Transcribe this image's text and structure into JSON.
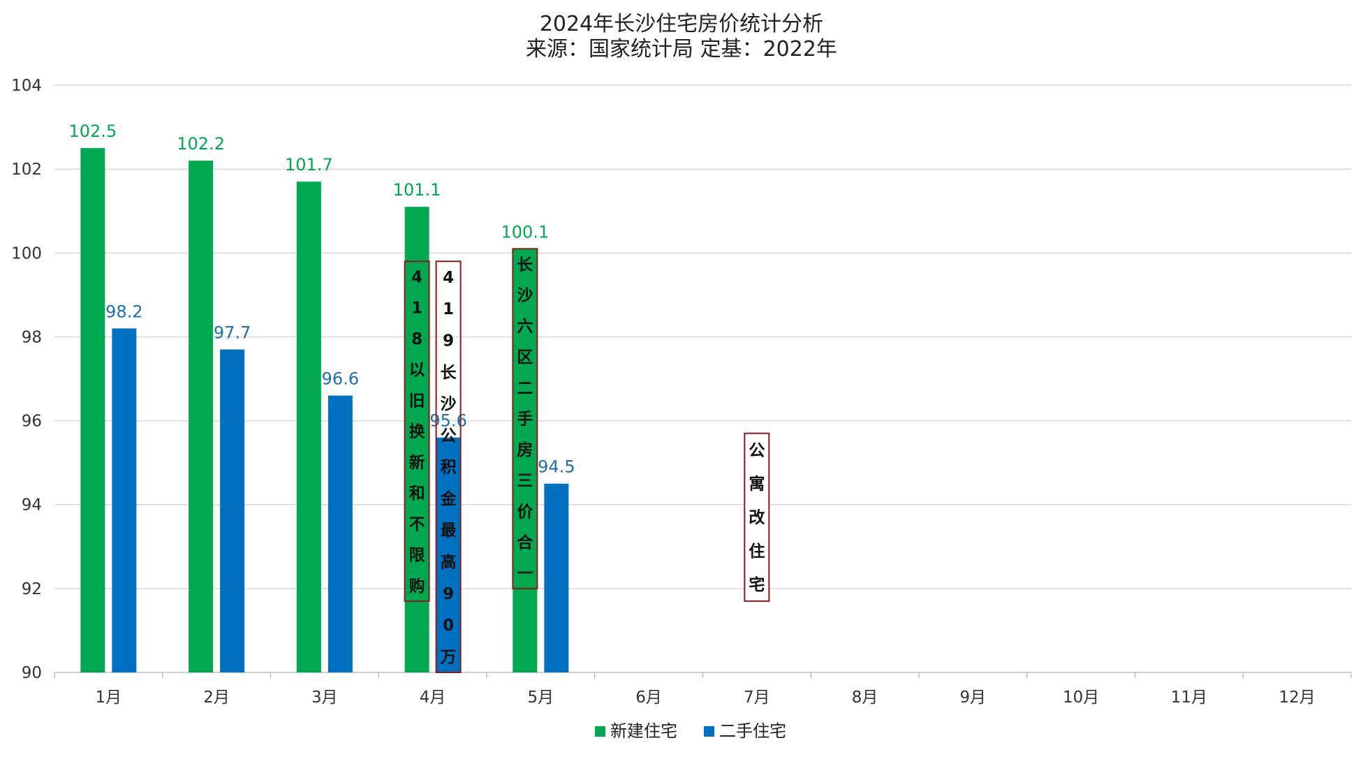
{
  "chart_data": {
    "type": "bar",
    "title": "2024年长沙住宅房价统计分析",
    "subtitle": "来源：国家统计局 定基：2022年",
    "categories": [
      "1月",
      "2月",
      "3月",
      "4月",
      "5月",
      "6月",
      "7月",
      "8月",
      "9月",
      "10月",
      "11月",
      "12月"
    ],
    "series": [
      {
        "name": "新建住宅",
        "color": "#00a94f",
        "label_color": "#00a94f",
        "values": [
          102.5,
          102.2,
          101.7,
          101.1,
          100.1,
          null,
          null,
          null,
          null,
          null,
          null,
          null
        ]
      },
      {
        "name": "二手住宅",
        "color": "#0070c0",
        "label_color": "#1f6fb0",
        "values": [
          98.2,
          97.7,
          96.6,
          95.6,
          94.5,
          null,
          null,
          null,
          null,
          null,
          null,
          null
        ]
      }
    ],
    "ylim": [
      90,
      104
    ],
    "yticks": [
      90,
      92,
      94,
      96,
      98,
      100,
      102,
      104
    ],
    "grid": true,
    "legend_position": "bottom-center",
    "annotations": [
      {
        "text": "418以旧换新和不限购",
        "category": "4月",
        "slot": 0,
        "top_value": 99.8,
        "bottom_value": 91.7,
        "fill": "#00a94f"
      },
      {
        "text": "419长沙公积金最高90万",
        "category": "4月",
        "slot": 1,
        "top_value": 99.8,
        "bottom_value": 90.0,
        "fill": "none"
      },
      {
        "text": "长沙六区二手房三价合一",
        "category": "5月",
        "slot": 0,
        "top_value": 100.1,
        "bottom_value": 92.0,
        "fill": "#00a94f"
      },
      {
        "text": "公寓改住宅",
        "category": "7月",
        "slot": -1,
        "top_value": 95.7,
        "bottom_value": 91.7,
        "fill": "#ffffff"
      }
    ]
  }
}
